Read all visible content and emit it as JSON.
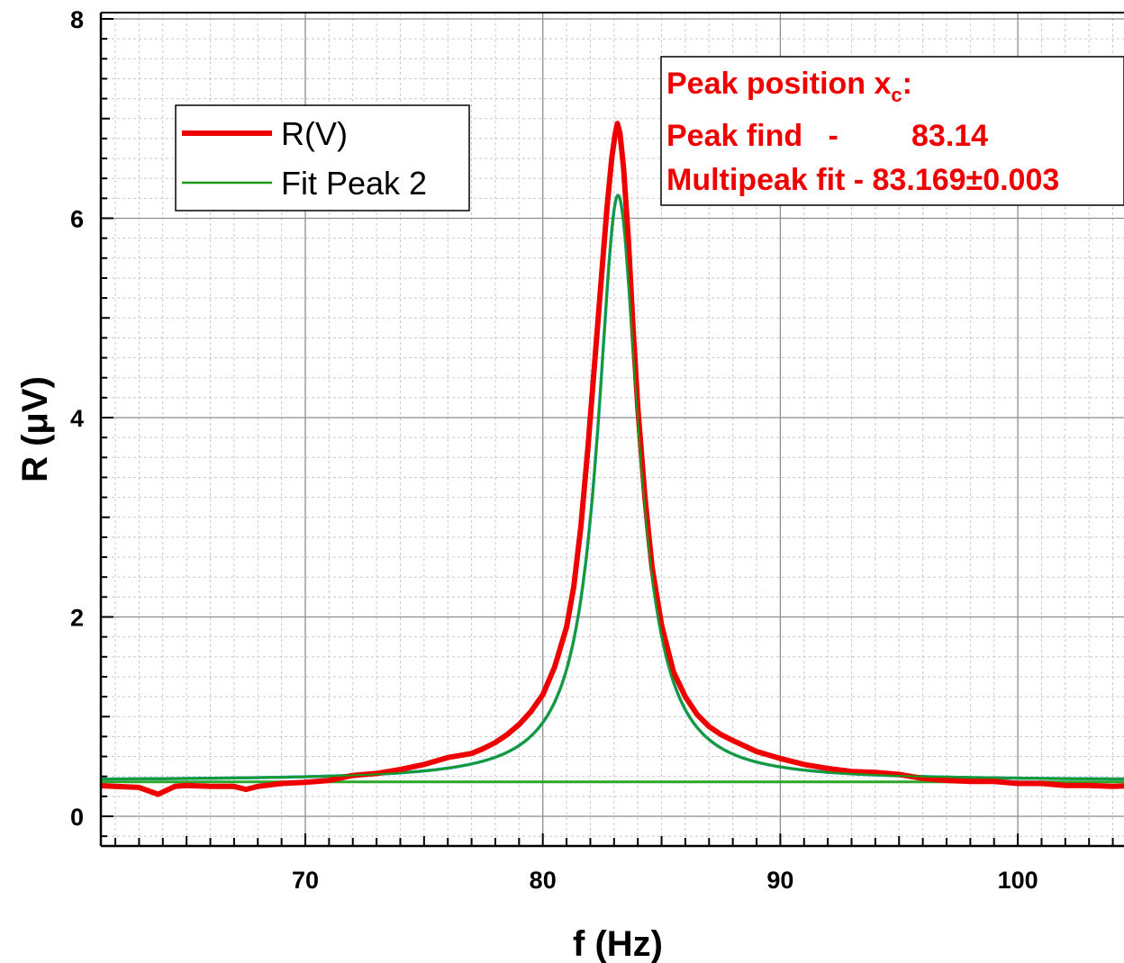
{
  "chart_data": {
    "type": "line",
    "xlabel": "f (Hz)",
    "ylabel": "R (μV)",
    "xlim": [
      61.2,
      105
    ],
    "ylim": [
      -0.3,
      8
    ],
    "xticks": [
      70,
      80,
      90,
      100
    ],
    "yticks": [
      0,
      2,
      4,
      6,
      8
    ],
    "grid": true,
    "legend_position": "top-left",
    "series": [
      {
        "name": "R(V)",
        "color": "#ee0000",
        "x": [
          61.2,
          62,
          63,
          63.8,
          64.5,
          65,
          66,
          67,
          67.5,
          68,
          69,
          70,
          71,
          72,
          73,
          74,
          75,
          76,
          77,
          77.5,
          78,
          78.5,
          79,
          79.5,
          80,
          80.5,
          81,
          81.3,
          81.6,
          81.9,
          82.2,
          82.5,
          82.7,
          82.9,
          83.05,
          83.14,
          83.25,
          83.4,
          83.6,
          83.8,
          84,
          84.3,
          84.6,
          85,
          85.5,
          86,
          86.5,
          87,
          87.5,
          88,
          89,
          90,
          91,
          92,
          93,
          94,
          95,
          96,
          97,
          98,
          99,
          100,
          101,
          102,
          103,
          104,
          105
        ],
        "values": [
          0.31,
          0.3,
          0.29,
          0.22,
          0.3,
          0.31,
          0.3,
          0.3,
          0.27,
          0.3,
          0.33,
          0.34,
          0.36,
          0.41,
          0.43,
          0.47,
          0.52,
          0.59,
          0.63,
          0.68,
          0.74,
          0.82,
          0.92,
          1.05,
          1.22,
          1.5,
          1.9,
          2.3,
          2.9,
          3.7,
          4.6,
          5.5,
          6.1,
          6.6,
          6.85,
          6.95,
          6.85,
          6.5,
          5.8,
          4.9,
          4.1,
          3.2,
          2.5,
          1.92,
          1.45,
          1.2,
          1.02,
          0.9,
          0.82,
          0.76,
          0.65,
          0.58,
          0.52,
          0.48,
          0.45,
          0.44,
          0.42,
          0.38,
          0.36,
          0.35,
          0.35,
          0.33,
          0.33,
          0.31,
          0.31,
          0.3,
          0.31
        ]
      },
      {
        "name": "Fit Peak 2",
        "color": "#1a9a1a",
        "peak_center": 83.169,
        "peak_height": 6.23,
        "baseline": 0.36,
        "half_width": 1.05
      }
    ],
    "fit_curve_color": "#179a9a",
    "baseline_color": "#2ba82b"
  },
  "legend": {
    "items": [
      {
        "label": "R(V)",
        "color": "#ee0000"
      },
      {
        "label": "Fit Peak 2",
        "color": "#1a9a1a"
      }
    ]
  },
  "annotation": {
    "title_main": "Peak position x",
    "title_sub": "c",
    "title_end": ":",
    "line2_label": "Peak find   -",
    "line2_value": "83.14",
    "line3": "Multipeak fit - 83.169±0.003",
    "color": "#ee0000"
  }
}
